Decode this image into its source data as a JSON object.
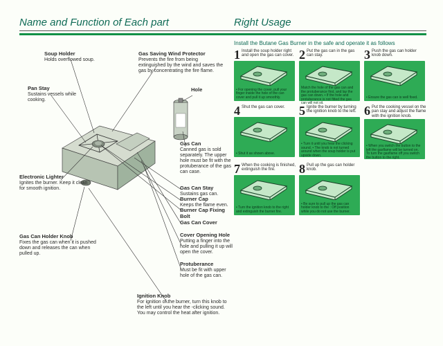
{
  "header": {
    "left": "Name and Function of Each part",
    "right": "Right Usage"
  },
  "intro": "Install the Butane Gas Burner in the safe and operate it as follows",
  "labels": {
    "soup": {
      "t": "Soup Holder",
      "d": "Holds overflowed soup."
    },
    "pan": {
      "t": "Pan Stay",
      "d": "Sustains vessels while cooking."
    },
    "elig": {
      "t": "Electronic Lighter",
      "d": "Ignites the burner. Keep it clean for smooth ignition."
    },
    "knob": {
      "t": "Gas Can Holder Knob",
      "d": "Fixes the gas can when it is pushed down and releases the can when pulled up."
    },
    "wind": {
      "t": "Gas Saving Wind Protector",
      "d": "Prevents the fire from being extinguished by the wind and saves the gas by concentrating the fire flame."
    },
    "hole": {
      "t": "Hole",
      "d": ""
    },
    "gcan": {
      "t": "Gas Can",
      "d": "Canned gas is sold separately. The upper hole must be fit with the protuberance of the gas can case."
    },
    "gstay": {
      "t": "Gas Can Stay",
      "d": "Sustains gas can."
    },
    "bcap": {
      "t": "Burner Cap",
      "d": "Keeps the flame even."
    },
    "bolt": {
      "t": "Burner Cap Fixing Bolt",
      "d": ""
    },
    "cover": {
      "t": "Gas Can Cover",
      "d": ""
    },
    "open": {
      "t": "Cover Opening Hole",
      "d": "Putting a finger into the hole and pulling it up will open the cover."
    },
    "prot": {
      "t": "Protuberance",
      "d": "Must be fit with upper hole of the gas can."
    },
    "ign": {
      "t": "Ignition Knob",
      "d": "For ignition of the burner, turn this knob to the left until you hear the -clicking sound. You may control the heat after ignition."
    }
  },
  "steps": [
    {
      "n": "1",
      "t": "Install the soup holder right and open the gas can cover.",
      "c": "• For opening the cover, pull your finger inside the hole of the can cover and pull it up smoothly."
    },
    {
      "n": "2",
      "t": "Put the gas can in the gas can stay.",
      "c": "Match the hole of the gas can and the protuberance first, and lay the gas can down. • If the hole and protuberance is not fitted the gas can will not sit."
    },
    {
      "n": "3",
      "t": "Push the gas can holder knob down.",
      "c": "• Ensure the gas can is well fixed."
    },
    {
      "n": "4",
      "t": "Shut the gas can cover.",
      "c": "• Shut it as shown above."
    },
    {
      "n": "5",
      "t": "Ignite the burner by turning the ignition knob to the left.",
      "c": "• Turn it until you hear the clicking sound. • The knob is not turned around when the soup holder is put upside down."
    },
    {
      "n": "6",
      "t": "Put the cooking vessel on the pan stay and adjust the flame with the ignition knob.",
      "c": "• When you switch the button to the left the gasflame will be turned on. To turn the gasflame off you switch the button to the right."
    },
    {
      "n": "7",
      "t": "When the cooking is finished, extinguish the fire.",
      "c": "• Turn the ignition knob to the right and extinguish the burner fire."
    },
    {
      "n": "8",
      "t": "Pull up the gas can holder knob.",
      "c": "• Be sure to pull up the gas can holder knob to the : Off position while you do not use the burner."
    }
  ],
  "colors": {
    "accent": "#0d9045",
    "tile": "#2eab55",
    "tileFill": "#c5e8c8",
    "tileStroke": "#184026",
    "teal": "#0f6a56"
  }
}
